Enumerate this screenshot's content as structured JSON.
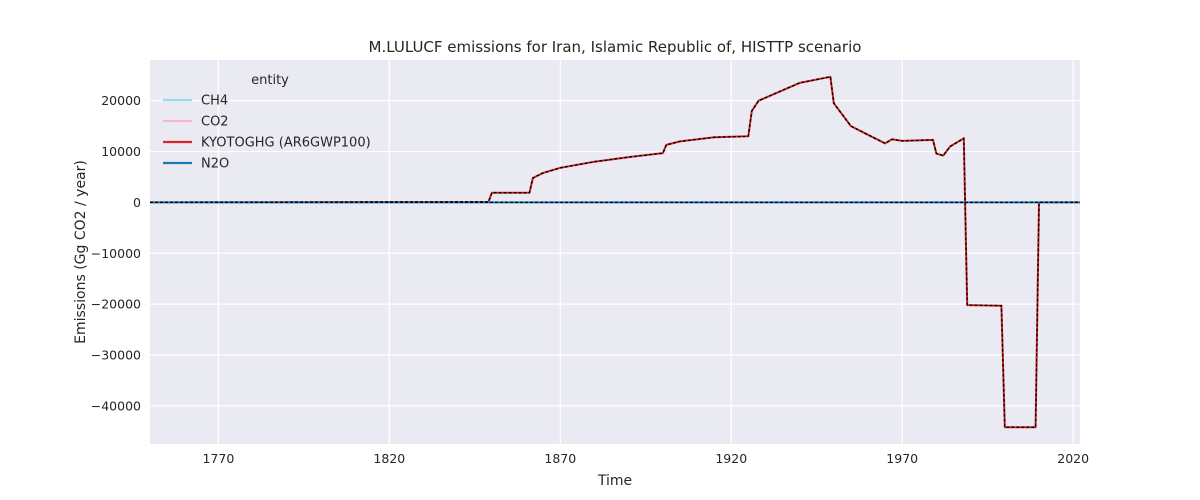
{
  "chart_data": {
    "type": "line",
    "title": "M.LULUCF emissions for Iran, Islamic Republic of, HISTTP scenario",
    "xlabel": "Time",
    "ylabel": "Emissions (Gg CO2 / year)",
    "xlim": [
      1750,
      2022
    ],
    "ylim": [
      -47500,
      28000
    ],
    "xticks": [
      1770,
      1820,
      1870,
      1920,
      1970,
      2020
    ],
    "yticks": [
      20000,
      10000,
      0,
      -10000,
      -20000,
      -30000,
      -40000
    ],
    "ytick_labels": [
      "20000",
      "10000",
      "0",
      "−10000",
      "−20000",
      "−30000",
      "−40000"
    ],
    "grid": true,
    "legend": {
      "title": "entity",
      "placement": "top-left",
      "entries": [
        "CH4",
        "CO2",
        "KYOTOGHG (AR6GWP100)",
        "N2O"
      ]
    },
    "series": [
      {
        "name": "CH4",
        "color": "#9edae5",
        "values": [
          [
            1750,
            0
          ],
          [
            2022,
            0
          ]
        ]
      },
      {
        "name": "CO2",
        "color": "#f7b6d2",
        "values": [
          [
            1750,
            0
          ],
          [
            1849,
            100
          ],
          [
            1850,
            1900
          ],
          [
            1861,
            1900
          ],
          [
            1862,
            4800
          ],
          [
            1865,
            5800
          ],
          [
            1870,
            6800
          ],
          [
            1880,
            8000
          ],
          [
            1890,
            8900
          ],
          [
            1900,
            9700
          ],
          [
            1901,
            11300
          ],
          [
            1905,
            12000
          ],
          [
            1915,
            12800
          ],
          [
            1925,
            13000
          ],
          [
            1926,
            18000
          ],
          [
            1928,
            20000
          ],
          [
            1940,
            23500
          ],
          [
            1949,
            24700
          ],
          [
            1950,
            19500
          ],
          [
            1955,
            15000
          ],
          [
            1960,
            13300
          ],
          [
            1965,
            11600
          ],
          [
            1967,
            12400
          ],
          [
            1970,
            12100
          ],
          [
            1979,
            12300
          ],
          [
            1980,
            9600
          ],
          [
            1982,
            9200
          ],
          [
            1984,
            11000
          ],
          [
            1988,
            12600
          ],
          [
            1989,
            -20200
          ],
          [
            1999,
            -20300
          ],
          [
            2000,
            -44200
          ],
          [
            2009,
            -44200
          ],
          [
            2010,
            0
          ],
          [
            2022,
            0
          ]
        ]
      },
      {
        "name": "KYOTOGHG (AR6GWP100)",
        "color": "#d62728",
        "values": [
          [
            1750,
            0
          ],
          [
            1849,
            100
          ],
          [
            1850,
            1900
          ],
          [
            1861,
            1900
          ],
          [
            1862,
            4800
          ],
          [
            1865,
            5800
          ],
          [
            1870,
            6800
          ],
          [
            1880,
            8000
          ],
          [
            1890,
            8900
          ],
          [
            1900,
            9700
          ],
          [
            1901,
            11300
          ],
          [
            1905,
            12000
          ],
          [
            1915,
            12800
          ],
          [
            1925,
            13000
          ],
          [
            1926,
            18000
          ],
          [
            1928,
            20000
          ],
          [
            1940,
            23500
          ],
          [
            1949,
            24700
          ],
          [
            1950,
            19500
          ],
          [
            1955,
            15000
          ],
          [
            1960,
            13300
          ],
          [
            1965,
            11600
          ],
          [
            1967,
            12400
          ],
          [
            1970,
            12100
          ],
          [
            1979,
            12300
          ],
          [
            1980,
            9600
          ],
          [
            1982,
            9200
          ],
          [
            1984,
            11000
          ],
          [
            1988,
            12600
          ],
          [
            1989,
            -20200
          ],
          [
            1999,
            -20300
          ],
          [
            2000,
            -44200
          ],
          [
            2009,
            -44200
          ],
          [
            2010,
            0
          ],
          [
            2022,
            0
          ]
        ]
      },
      {
        "name": "N2O",
        "color": "#1f77b4",
        "values": [
          [
            1750,
            0
          ],
          [
            2022,
            0
          ]
        ]
      }
    ],
    "overlays": [
      {
        "style": "dashed",
        "color": "#000000",
        "values": [
          [
            1750,
            0
          ],
          [
            1849,
            100
          ],
          [
            1850,
            1900
          ],
          [
            1861,
            1900
          ],
          [
            1862,
            4800
          ],
          [
            1865,
            5800
          ],
          [
            1870,
            6800
          ],
          [
            1880,
            8000
          ],
          [
            1890,
            8900
          ],
          [
            1900,
            9700
          ],
          [
            1901,
            11300
          ],
          [
            1905,
            12000
          ],
          [
            1915,
            12800
          ],
          [
            1925,
            13000
          ],
          [
            1926,
            18000
          ],
          [
            1928,
            20000
          ],
          [
            1940,
            23500
          ],
          [
            1949,
            24700
          ],
          [
            1950,
            19500
          ],
          [
            1955,
            15000
          ],
          [
            1960,
            13300
          ],
          [
            1965,
            11600
          ],
          [
            1967,
            12400
          ],
          [
            1970,
            12100
          ],
          [
            1979,
            12300
          ],
          [
            1980,
            9600
          ],
          [
            1982,
            9200
          ],
          [
            1984,
            11000
          ],
          [
            1988,
            12600
          ],
          [
            1989,
            -20200
          ],
          [
            1999,
            -20300
          ],
          [
            2000,
            -44200
          ],
          [
            2009,
            -44200
          ],
          [
            2010,
            0
          ],
          [
            2022,
            0
          ]
        ]
      },
      {
        "style": "dashed",
        "color": "#000000",
        "values": [
          [
            1750,
            0
          ],
          [
            2022,
            0
          ]
        ]
      }
    ]
  }
}
